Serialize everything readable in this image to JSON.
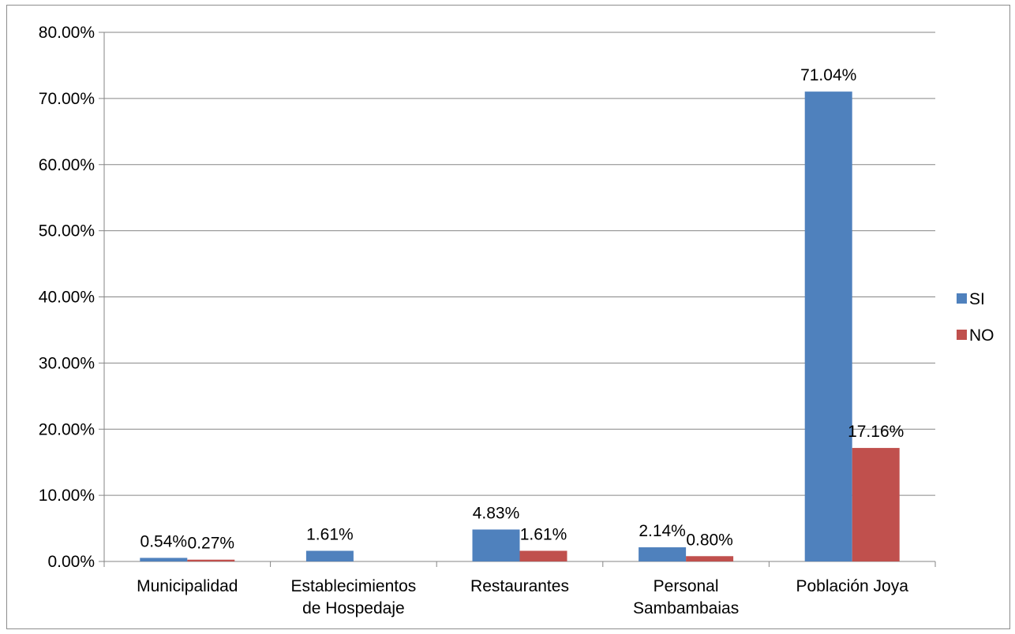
{
  "chart_data": {
    "type": "bar",
    "categories": [
      [
        "Municipalidad"
      ],
      [
        "Establecimientos",
        "de Hospedaje"
      ],
      [
        "Restaurantes"
      ],
      [
        "Personal",
        "Sambambaias"
      ],
      [
        "Población Joya"
      ]
    ],
    "series": [
      {
        "name": "SI",
        "color": "#4f81bd",
        "values": [
          0.54,
          1.61,
          4.83,
          2.14,
          71.04
        ],
        "labels": [
          "0.54%",
          "1.61%",
          "4.83%",
          "2.14%",
          "71.04%"
        ]
      },
      {
        "name": "NO",
        "color": "#c0504d",
        "values": [
          0.27,
          0,
          1.61,
          0.8,
          17.16
        ],
        "labels": [
          "0.27%",
          "",
          "1.61%",
          "0.80%",
          "17.16%"
        ]
      }
    ],
    "ylim": [
      0,
      80
    ],
    "yticks": [
      "0.00%",
      "10.00%",
      "20.00%",
      "30.00%",
      "40.00%",
      "50.00%",
      "60.00%",
      "70.00%",
      "80.00%"
    ],
    "grid": true,
    "legend_position": "right"
  }
}
